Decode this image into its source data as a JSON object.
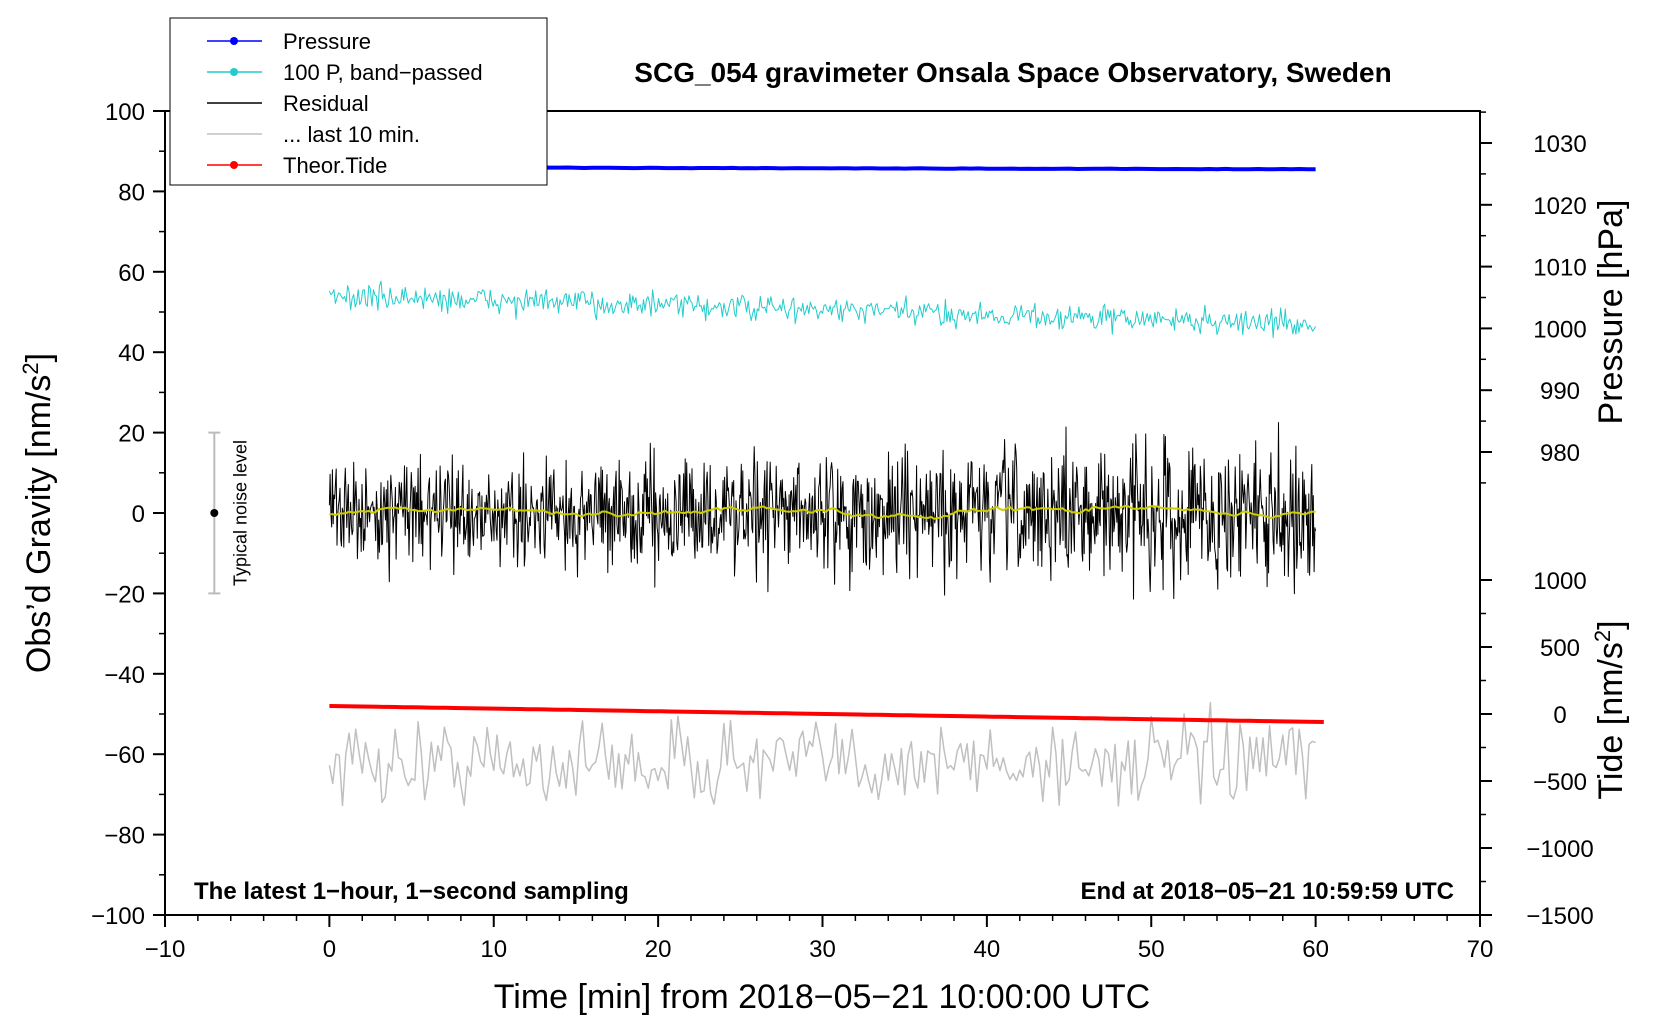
{
  "chart_data": {
    "type": "line",
    "title": "SCG_054 gravimeter Onsala Space Observatory, Sweden",
    "xlabel": "Time [min] from 2018−05−21 10:00:00 UTC",
    "ylabel": "Obs’d Gravity [nm/s",
    "ylabel_sup": "2",
    "ylabel_end": "]",
    "xlim": [
      -10,
      70
    ],
    "ylim": [
      -100,
      100
    ],
    "x_ticks": [
      "−10",
      "0",
      "10",
      "20",
      "30",
      "40",
      "50",
      "60",
      "70"
    ],
    "y_ticks": [
      "−100",
      "−80",
      "−60",
      "−40",
      "−20",
      "0",
      "20",
      "40",
      "60",
      "80",
      "100"
    ],
    "right_axis_pressure": {
      "label": "Pressure [hPa]",
      "ticks": [
        "980",
        "990",
        "1000",
        "1010",
        "1020",
        "1030"
      ],
      "values": [
        980,
        990,
        1000,
        1010,
        1020,
        1030
      ]
    },
    "right_axis_tide": {
      "label": "Tide [nm/s",
      "label_sup": "2",
      "label_end": "]",
      "ticks": [
        "−1500",
        "−1000",
        "−500",
        "0",
        "500",
        "1000"
      ],
      "values": [
        -1500,
        -1000,
        -500,
        0,
        500,
        1000
      ]
    },
    "series": [
      {
        "name": "Pressure",
        "color": "#0000ff",
        "kind": "thick",
        "x": [
          0,
          60
        ],
        "y": [
          86,
          85.5
        ],
        "noise": 0.2
      },
      {
        "name": "100 P, band−passed",
        "color": "#22cccc",
        "kind": "noisy",
        "x": [
          0,
          60
        ],
        "y": [
          54,
          47
        ],
        "noise": 3
      },
      {
        "name": "Residual",
        "color": "#000000",
        "kind": "noisy",
        "x": [
          0,
          60
        ],
        "y": [
          0,
          0
        ],
        "noise": 14
      },
      {
        "name": "... last 10 min.",
        "color": "#c0c0c0",
        "kind": "noisy",
        "x": [
          0,
          60
        ],
        "y": [
          -62,
          -62
        ],
        "noise": 10
      },
      {
        "name": "Theor.Tide",
        "color": "#ff0000",
        "kind": "thick",
        "x": [
          0,
          60.5
        ],
        "y": [
          -48,
          -52
        ],
        "noise": 0
      },
      {
        "name": "running mean",
        "color": "#cccc00",
        "kind": "smooth",
        "x": [
          0,
          60
        ],
        "y": [
          0,
          0.5
        ],
        "noise": 1.5
      }
    ],
    "legend": [
      {
        "label": "Pressure",
        "color": "#0000ff",
        "marker": true
      },
      {
        "label": "100 P, band−passed",
        "color": "#22cccc",
        "marker": true
      },
      {
        "label": "Residual",
        "color": "#000000",
        "marker": false
      },
      {
        "label": "... last 10 min.",
        "color": "#c0c0c0",
        "marker": false
      },
      {
        "label": "Theor.Tide",
        "color": "#ff0000",
        "marker": true
      }
    ],
    "legend_position": "top-left",
    "noise_bar": {
      "label": "Typical noise level",
      "x": -7,
      "center": 0,
      "low": -20,
      "high": 20
    },
    "annotations": {
      "bottom_left": "The latest 1−hour, 1−second sampling",
      "bottom_right": "End at 2018−05−21 10:59:59 UTC"
    }
  }
}
